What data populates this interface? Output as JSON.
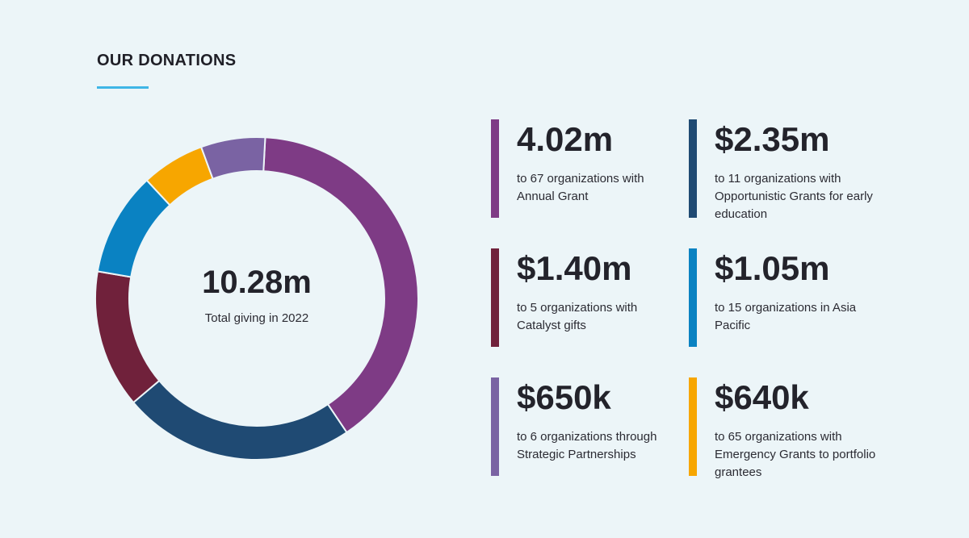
{
  "title": "OUR DONATIONS",
  "total": {
    "value": "10.28m",
    "label": "Total giving in 2022"
  },
  "colors": {
    "background": "#ecf5f8",
    "accent_underline": "#3fb6e6"
  },
  "stats": [
    {
      "amount": "4.02m",
      "desc": "to 67 organizations with Annual Grant",
      "color": "#7e3b85"
    },
    {
      "amount": "$2.35m",
      "desc": "to 11 organizations with Opportunistic Grants for early education",
      "color": "#1f4a73"
    },
    {
      "amount": "$1.40m",
      "desc": "to 5 organizations with Catalyst gifts",
      "color": "#70213b"
    },
    {
      "amount": "$1.05m",
      "desc": "to 15 organizations in Asia Pacific",
      "color": "#0a82c2"
    },
    {
      "amount": "$650k",
      "desc": "to 6 organizations through Strategic Partnerships",
      "color": "#7a63a3"
    },
    {
      "amount": "$640k",
      "desc": "to 65 organizations with Emergency Grants to portfolio grantees",
      "color": "#f7a600"
    }
  ],
  "chart_data": {
    "type": "pie",
    "style": "donut",
    "title": "OUR DONATIONS",
    "center_text": "10.28m",
    "center_subtext": "Total giving in 2022",
    "start_angle_deg": 3,
    "categories": [
      "Annual Grant",
      "Opportunistic Grants for early education",
      "Catalyst gifts",
      "Asia Pacific",
      "Emergency Grants",
      "Strategic Partnerships"
    ],
    "values": [
      4.02,
      2.35,
      1.4,
      1.05,
      0.64,
      0.65
    ],
    "units": "millions USD",
    "colors": [
      "#7e3b85",
      "#1f4a73",
      "#70213b",
      "#0a82c2",
      "#f7a600",
      "#7a63a3"
    ],
    "legend": "none"
  }
}
